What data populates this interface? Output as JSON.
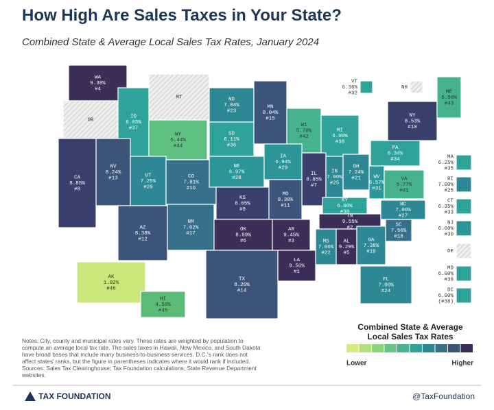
{
  "header": {
    "title": "How High Are Sales Taxes in Your State?",
    "subtitle": "Combined State & Average Local Sales Tax Rates, January 2024"
  },
  "map": {
    "states": [
      {
        "code": "WA",
        "rate": 9.38,
        "rate_label": "9.38%",
        "rank_label": "#4",
        "color": "#3b2f58"
      },
      {
        "code": "OR",
        "color": "#e9e9e9"
      },
      {
        "code": "MT",
        "color": "#e9e9e9"
      },
      {
        "code": "ID",
        "rate": 6.03,
        "rate_label": "6.03%",
        "rank_label": "#37",
        "color": "#2fa39a"
      },
      {
        "code": "WY",
        "rate": 5.44,
        "rate_label": "5.44%",
        "rank_label": "#44",
        "color": "#5fc084"
      },
      {
        "code": "ND",
        "rate": 7.04,
        "rate_label": "7.04%",
        "rank_label": "#23",
        "color": "#2d8795"
      },
      {
        "code": "SD",
        "rate": 6.11,
        "rate_label": "6.11%",
        "rank_label": "#36",
        "color": "#2fa39a"
      },
      {
        "code": "MN",
        "rate": 8.04,
        "rate_label": "8.04%",
        "rank_label": "#15",
        "color": "#3c5479"
      },
      {
        "code": "WI",
        "rate": 5.7,
        "rate_label": "5.70%",
        "rank_label": "#42",
        "color": "#45b290"
      },
      {
        "code": "MI",
        "rate": 6.0,
        "rate_label": "6.00%",
        "rank_label": "#38",
        "color": "#2fa39a"
      },
      {
        "code": "NV",
        "rate": 8.24,
        "rate_label": "8.24%",
        "rank_label": "#13",
        "color": "#3c5479"
      },
      {
        "code": "UT",
        "rate": 7.25,
        "rate_label": "7.25%",
        "rank_label": "#20",
        "color": "#2d8795"
      },
      {
        "code": "CO",
        "rate": 7.81,
        "rate_label": "7.81%",
        "rank_label": "#16",
        "color": "#36708b"
      },
      {
        "code": "NE",
        "rate": 6.97,
        "rate_label": "6.97%",
        "rank_label": "#28",
        "color": "#2c9597"
      },
      {
        "code": "IA",
        "rate": 6.94,
        "rate_label": "6.94%",
        "rank_label": "#29",
        "color": "#2c9597"
      },
      {
        "code": "IL",
        "rate": 8.85,
        "rate_label": "8.85%",
        "rank_label": "#7",
        "color": "#3a3f6b"
      },
      {
        "code": "IN",
        "rate": 7.0,
        "rate_label": "7.00%",
        "rank_label": "#25",
        "color": "#2d8795"
      },
      {
        "code": "OH",
        "rate": 7.24,
        "rate_label": "7.24%",
        "rank_label": "#21",
        "color": "#2d8795"
      },
      {
        "code": "KS",
        "rate": 8.65,
        "rate_label": "8.65%",
        "rank_label": "#9",
        "color": "#3a3f6b"
      },
      {
        "code": "MO",
        "rate": 8.38,
        "rate_label": "8.38%",
        "rank_label": "#11",
        "color": "#3c5479"
      },
      {
        "code": "KY",
        "rate": 6.0,
        "rate_label": "6.00%",
        "rank_label": "#38",
        "color": "#2fa39a"
      },
      {
        "code": "WV",
        "rate": 6.57,
        "rate_label": "6.57%",
        "rank_label": "#31",
        "color": "#2c9597"
      },
      {
        "code": "VA",
        "rate": 5.77,
        "rate_label": "5.77%",
        "rank_label": "#41",
        "color": "#45b290"
      },
      {
        "code": "PA",
        "rate": 6.34,
        "rate_label": "6.34%",
        "rank_label": "#34",
        "color": "#2fa39a"
      },
      {
        "code": "NY",
        "rate": 8.53,
        "rate_label": "8.53%",
        "rank_label": "#10",
        "color": "#3a3f6b"
      },
      {
        "code": "VT",
        "rate": 6.36,
        "rate_label": "6.36%",
        "rank_label": "#32",
        "color": "#2fa39a"
      },
      {
        "code": "NH",
        "color": "#e9e9e9"
      },
      {
        "code": "ME",
        "rate": 5.5,
        "rate_label": "5.50%",
        "rank_label": "#43",
        "color": "#45b290"
      },
      {
        "code": "CA",
        "rate": 8.85,
        "rate_label": "8.85%",
        "rank_label": "#8",
        "color": "#3a3f6b"
      },
      {
        "code": "AZ",
        "rate": 8.38,
        "rate_label": "8.38%",
        "rank_label": "#12",
        "color": "#3c5479"
      },
      {
        "code": "NM",
        "rate": 7.62,
        "rate_label": "7.62%",
        "rank_label": "#17",
        "color": "#36708b"
      },
      {
        "code": "OK",
        "rate": 8.99,
        "rate_label": "8.99%",
        "rank_label": "#6",
        "color": "#3b2f58"
      },
      {
        "code": "TX",
        "rate": 8.2,
        "rate_label": "8.20%",
        "rank_label": "#14",
        "color": "#3c5479"
      },
      {
        "code": "AR",
        "rate": 9.45,
        "rate_label": "9.45%",
        "rank_label": "#3",
        "color": "#3b2f58"
      },
      {
        "code": "LA",
        "rate": 9.56,
        "rate_label": "9.56%",
        "rank_label": "#1",
        "color": "#3b2f58"
      },
      {
        "code": "TN",
        "rate": 9.55,
        "rate_label": "9.55%",
        "rank_label": "#2",
        "color": "#3b2f58"
      },
      {
        "code": "MS",
        "rate": 7.06,
        "rate_label": "7.06%",
        "rank_label": "#22",
        "color": "#2d8795"
      },
      {
        "code": "AL",
        "rate": 9.29,
        "rate_label": "9.29%",
        "rank_label": "#5",
        "color": "#3b2f58"
      },
      {
        "code": "GA",
        "rate": 7.38,
        "rate_label": "7.38%",
        "rank_label": "#19",
        "color": "#2d8795"
      },
      {
        "code": "SC",
        "rate": 7.5,
        "rate_label": "7.50%",
        "rank_label": "#18",
        "color": "#36708b"
      },
      {
        "code": "NC",
        "rate": 7.0,
        "rate_label": "7.00%",
        "rank_label": "#27",
        "color": "#2d8795"
      },
      {
        "code": "FL",
        "rate": 7.0,
        "rate_label": "7.00%",
        "rank_label": "#24",
        "color": "#2d8795"
      },
      {
        "code": "AK",
        "rate": 1.82,
        "rate_label": "1.82%",
        "rank_label": "#46",
        "color": "#c9e77a"
      },
      {
        "code": "HI",
        "rate": 4.5,
        "rate_label": "4.50%",
        "rank_label": "#45",
        "color": "#5cbc77"
      },
      {
        "code": "MA",
        "rate": 6.25,
        "rate_label": "6.25%",
        "rank_label": "#35",
        "color": "#2fa39a"
      },
      {
        "code": "RI",
        "rate": 7.0,
        "rate_label": "7.00%",
        "rank_label": "#25",
        "color": "#2d8795"
      },
      {
        "code": "CT",
        "rate": 6.35,
        "rate_label": "6.35%",
        "rank_label": "#33",
        "color": "#2fa39a"
      },
      {
        "code": "NJ",
        "rate": 6.6,
        "rate_label": "6.60%",
        "rank_label": "#30",
        "color": "#2c9597"
      },
      {
        "code": "DE",
        "color": "#e9e9e9"
      },
      {
        "code": "MD",
        "rate": 6.0,
        "rate_label": "6.00%",
        "rank_label": "#38",
        "color": "#2fa39a"
      },
      {
        "code": "DC",
        "rate": 6.0,
        "rate_label": "6.00%",
        "rank_label": "(#38)",
        "color": "#2fa39a"
      }
    ]
  },
  "legend": {
    "title": [
      "Combined State & Average",
      "Local Sales Tax Rates"
    ],
    "low_label": "Lower",
    "high_label": "Higher",
    "colors": [
      "#d4ec7a",
      "#b2e07a",
      "#8dd37c",
      "#67c386",
      "#45b290",
      "#2fa39a",
      "#2d8795",
      "#36708b",
      "#3c5479",
      "#3b2f58"
    ]
  },
  "notes": [
    "Notes: City, county and municipal rates vary. These rates are weighted by population to",
    "compute an average local tax rate. The sales taxes in Hawaii, New Mexico, and South Dakota",
    "have broad bases that include many business-to-business services. D.C.'s rank does not",
    "affect states' ranks, but the figure in parentheses indicates where it would rank if included.",
    "Sources: Sales Tax Clearinghouse; Tax Foundation calculations; State Revenue Department",
    "websites."
  ],
  "footer": {
    "brand": "TAX FOUNDATION",
    "handle": "@TaxFoundation"
  }
}
